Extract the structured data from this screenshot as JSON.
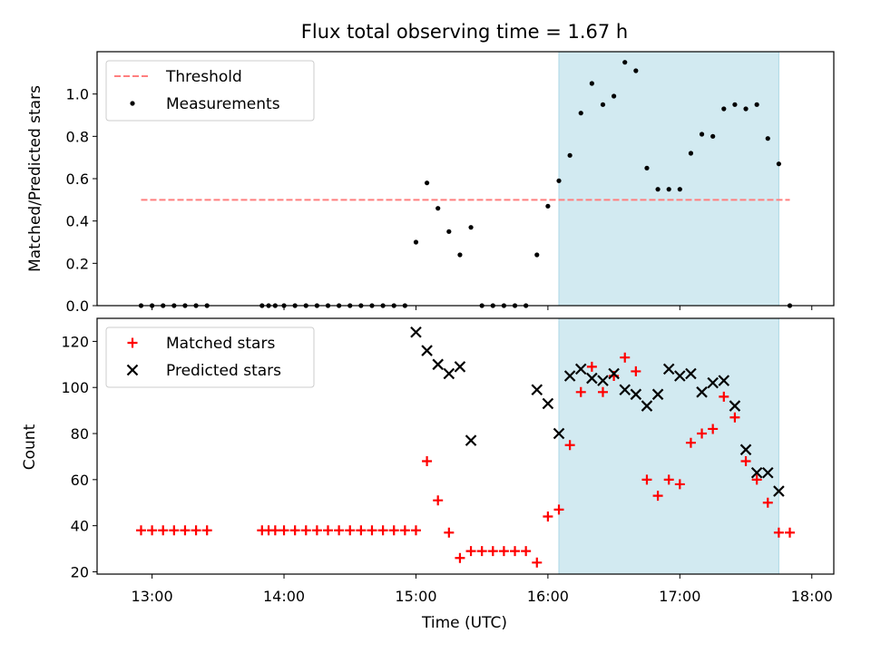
{
  "chart_data": [
    {
      "type": "scatter",
      "title": "Flux total observing time = 1.67 h",
      "xlabel": "",
      "ylabel": "Matched/Predicted stars",
      "ylim": [
        0,
        1.2
      ],
      "yticks": [
        "0.0",
        "0.2",
        "0.4",
        "0.6",
        "0.8",
        "1.0"
      ],
      "shaded_region": {
        "from": "16:05",
        "to": "17:45",
        "color": "#add8e6"
      },
      "legend": {
        "position": "top-left",
        "entries": [
          "Threshold",
          "Measurements"
        ]
      },
      "threshold": {
        "name": "Threshold",
        "value": 0.5,
        "from": "12:55",
        "to": "17:50",
        "color": "#ff7f7f"
      },
      "series": [
        {
          "name": "Measurements",
          "color": "#000000",
          "marker": "dot",
          "points": [
            [
              "12:55",
              0
            ],
            [
              "13:00",
              0
            ],
            [
              "13:05",
              0
            ],
            [
              "13:10",
              0
            ],
            [
              "13:15",
              0
            ],
            [
              "13:20",
              0
            ],
            [
              "13:25",
              0
            ],
            [
              "13:50",
              0
            ],
            [
              "13:53",
              0
            ],
            [
              "13:56",
              0
            ],
            [
              "14:00",
              0
            ],
            [
              "14:05",
              0
            ],
            [
              "14:10",
              0
            ],
            [
              "14:15",
              0
            ],
            [
              "14:20",
              0
            ],
            [
              "14:25",
              0
            ],
            [
              "14:30",
              0
            ],
            [
              "14:35",
              0
            ],
            [
              "14:40",
              0
            ],
            [
              "14:45",
              0
            ],
            [
              "14:50",
              0
            ],
            [
              "14:55",
              0
            ],
            [
              "15:00",
              0.3
            ],
            [
              "15:05",
              0.58
            ],
            [
              "15:10",
              0.46
            ],
            [
              "15:15",
              0.35
            ],
            [
              "15:20",
              0.24
            ],
            [
              "15:25",
              0.37
            ],
            [
              "15:30",
              0
            ],
            [
              "15:35",
              0
            ],
            [
              "15:40",
              0
            ],
            [
              "15:45",
              0
            ],
            [
              "15:50",
              0
            ],
            [
              "15:55",
              0.24
            ],
            [
              "16:00",
              0.47
            ],
            [
              "16:05",
              0.59
            ],
            [
              "16:10",
              0.71
            ],
            [
              "16:15",
              0.91
            ],
            [
              "16:20",
              1.05
            ],
            [
              "16:25",
              0.95
            ],
            [
              "16:30",
              0.99
            ],
            [
              "16:35",
              1.15
            ],
            [
              "16:40",
              1.11
            ],
            [
              "16:45",
              0.65
            ],
            [
              "16:50",
              0.55
            ],
            [
              "16:55",
              0.55
            ],
            [
              "17:00",
              0.55
            ],
            [
              "17:05",
              0.72
            ],
            [
              "17:10",
              0.81
            ],
            [
              "17:15",
              0.8
            ],
            [
              "17:20",
              0.93
            ],
            [
              "17:25",
              0.95
            ],
            [
              "17:30",
              0.93
            ],
            [
              "17:35",
              0.95
            ],
            [
              "17:40",
              0.79
            ],
            [
              "17:45",
              0.67
            ],
            [
              "17:50",
              0
            ]
          ]
        }
      ]
    },
    {
      "type": "scatter",
      "title": "",
      "xlabel": "Time (UTC)",
      "ylabel": "Count",
      "ylim": [
        19,
        130
      ],
      "yticks": [
        "20",
        "40",
        "60",
        "80",
        "100",
        "120"
      ],
      "xlim": [
        "12:35",
        "18:10"
      ],
      "xticks": [
        "13:00",
        "14:00",
        "15:00",
        "16:00",
        "17:00",
        "18:00"
      ],
      "shaded_region": {
        "from": "16:05",
        "to": "17:45",
        "color": "#add8e6"
      },
      "legend": {
        "position": "top-left",
        "entries": [
          "Matched stars",
          "Predicted stars"
        ]
      },
      "series": [
        {
          "name": "Matched stars",
          "color": "#ff0000",
          "marker": "plus",
          "points": [
            [
              "12:55",
              38
            ],
            [
              "13:00",
              38
            ],
            [
              "13:05",
              38
            ],
            [
              "13:10",
              38
            ],
            [
              "13:15",
              38
            ],
            [
              "13:20",
              38
            ],
            [
              "13:25",
              38
            ],
            [
              "13:50",
              38
            ],
            [
              "13:53",
              38
            ],
            [
              "13:56",
              38
            ],
            [
              "14:00",
              38
            ],
            [
              "14:05",
              38
            ],
            [
              "14:10",
              38
            ],
            [
              "14:15",
              38
            ],
            [
              "14:20",
              38
            ],
            [
              "14:25",
              38
            ],
            [
              "14:30",
              38
            ],
            [
              "14:35",
              38
            ],
            [
              "14:40",
              38
            ],
            [
              "14:45",
              38
            ],
            [
              "14:50",
              38
            ],
            [
              "14:55",
              38
            ],
            [
              "15:00",
              38
            ],
            [
              "15:05",
              68
            ],
            [
              "15:10",
              51
            ],
            [
              "15:15",
              37
            ],
            [
              "15:20",
              26
            ],
            [
              "15:25",
              29
            ],
            [
              "15:30",
              29
            ],
            [
              "15:35",
              29
            ],
            [
              "15:40",
              29
            ],
            [
              "15:45",
              29
            ],
            [
              "15:50",
              29
            ],
            [
              "15:55",
              24
            ],
            [
              "16:00",
              44
            ],
            [
              "16:05",
              47
            ],
            [
              "16:10",
              75
            ],
            [
              "16:15",
              98
            ],
            [
              "16:20",
              109
            ],
            [
              "16:25",
              98
            ],
            [
              "16:30",
              105
            ],
            [
              "16:35",
              113
            ],
            [
              "16:40",
              107
            ],
            [
              "16:45",
              60
            ],
            [
              "16:50",
              53
            ],
            [
              "16:55",
              60
            ],
            [
              "17:00",
              58
            ],
            [
              "17:05",
              76
            ],
            [
              "17:10",
              80
            ],
            [
              "17:15",
              82
            ],
            [
              "17:20",
              96
            ],
            [
              "17:25",
              87
            ],
            [
              "17:30",
              68
            ],
            [
              "17:35",
              60
            ],
            [
              "17:40",
              50
            ],
            [
              "17:45",
              37
            ],
            [
              "17:50",
              37
            ]
          ]
        },
        {
          "name": "Predicted stars",
          "color": "#000000",
          "marker": "x",
          "points": [
            [
              "15:00",
              124
            ],
            [
              "15:05",
              116
            ],
            [
              "15:10",
              110
            ],
            [
              "15:15",
              106
            ],
            [
              "15:20",
              109
            ],
            [
              "15:25",
              77
            ],
            [
              "15:55",
              99
            ],
            [
              "16:00",
              93
            ],
            [
              "16:05",
              80
            ],
            [
              "16:10",
              105
            ],
            [
              "16:15",
              108
            ],
            [
              "16:20",
              104
            ],
            [
              "16:25",
              103
            ],
            [
              "16:30",
              106
            ],
            [
              "16:35",
              99
            ],
            [
              "16:40",
              97
            ],
            [
              "16:45",
              92
            ],
            [
              "16:50",
              97
            ],
            [
              "16:55",
              108
            ],
            [
              "17:00",
              105
            ],
            [
              "17:05",
              106
            ],
            [
              "17:10",
              98
            ],
            [
              "17:15",
              102
            ],
            [
              "17:20",
              103
            ],
            [
              "17:25",
              92
            ],
            [
              "17:30",
              73
            ],
            [
              "17:35",
              63
            ],
            [
              "17:40",
              63
            ],
            [
              "17:45",
              55
            ]
          ]
        }
      ]
    }
  ]
}
